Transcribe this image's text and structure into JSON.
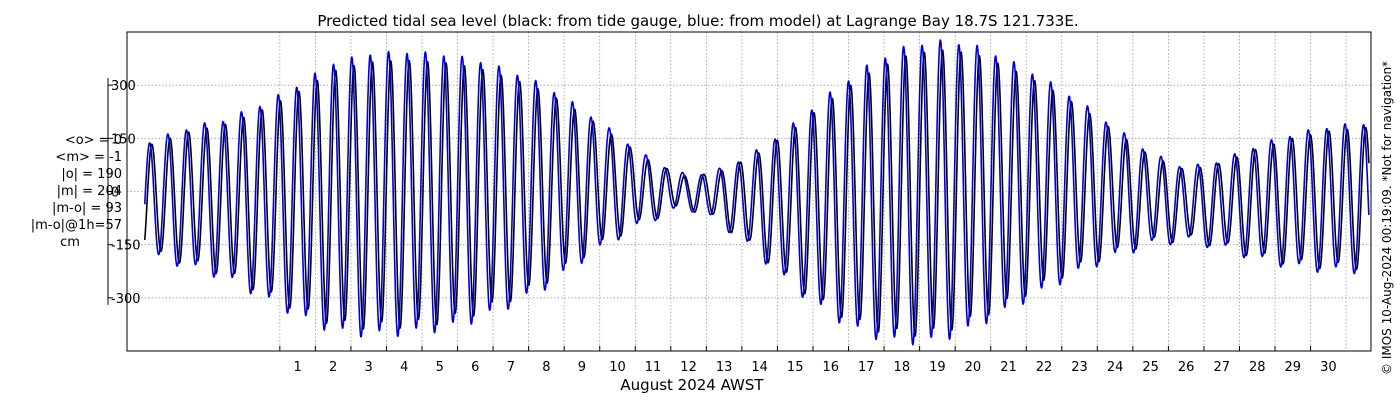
{
  "chart_data": {
    "type": "line",
    "title": "Predicted tidal sea level (black: from tide gauge, blue: from model) at Lagrange Bay 18.7S 121.733E.",
    "xlabel": "August 2024 AWST",
    "ylabel": "",
    "x_ticks": [
      "1",
      "2",
      "3",
      "4",
      "5",
      "6",
      "7",
      "8",
      "9",
      "10",
      "11",
      "12",
      "13",
      "14",
      "15",
      "16",
      "17",
      "18",
      "19",
      "20",
      "21",
      "22",
      "23",
      "24",
      "25",
      "26",
      "27",
      "28",
      "29",
      "30"
    ],
    "y_ticks": [
      "300",
      "150",
      "0",
      "-150",
      "-300"
    ],
    "ylim": [
      -450,
      450
    ],
    "xlim": [
      -3.8,
      31.2
    ],
    "grid": true,
    "series": [
      {
        "name": "black: from tide gauge",
        "color": "#000000",
        "amp_offset": 0,
        "phase_offset": 0
      },
      {
        "name": "blue: from model",
        "color": "#0000dd",
        "amp_offset": 22,
        "phase_offset": 0.12
      }
    ],
    "envelope": {
      "days": [
        -3.2,
        -2,
        -1,
        0,
        1,
        2,
        3,
        4,
        5,
        6,
        7,
        8,
        9,
        10,
        11,
        12,
        13,
        14,
        15,
        16,
        17,
        18,
        19,
        20,
        21,
        22,
        23,
        24,
        25,
        26,
        27,
        28,
        29,
        30,
        31
      ],
      "high": [
        130,
        170,
        190,
        230,
        280,
        340,
        365,
        370,
        365,
        350,
        320,
        280,
        220,
        150,
        80,
        40,
        60,
        110,
        180,
        260,
        330,
        380,
        400,
        390,
        350,
        300,
        240,
        170,
        100,
        60,
        80,
        120,
        150,
        170,
        180
      ],
      "low": [
        -170,
        -200,
        -230,
        -280,
        -330,
        -370,
        -380,
        -375,
        -365,
        -340,
        -300,
        -250,
        -180,
        -120,
        -70,
        -40,
        -90,
        -170,
        -260,
        -330,
        -380,
        -400,
        -395,
        -360,
        -310,
        -260,
        -210,
        -170,
        -140,
        -130,
        -150,
        -180,
        -200,
        -210,
        -210
      ]
    }
  },
  "stats": {
    "lines": [
      "<o> = 0",
      "<m> = -1",
      "|o| = 190",
      "|m| = 204",
      "|m-o| = 93",
      "|m-o|@1h=57"
    ],
    "unit": "cm"
  },
  "copyright": "© IMOS 10-Aug-2024 00:19:09. *Not for navigation*"
}
